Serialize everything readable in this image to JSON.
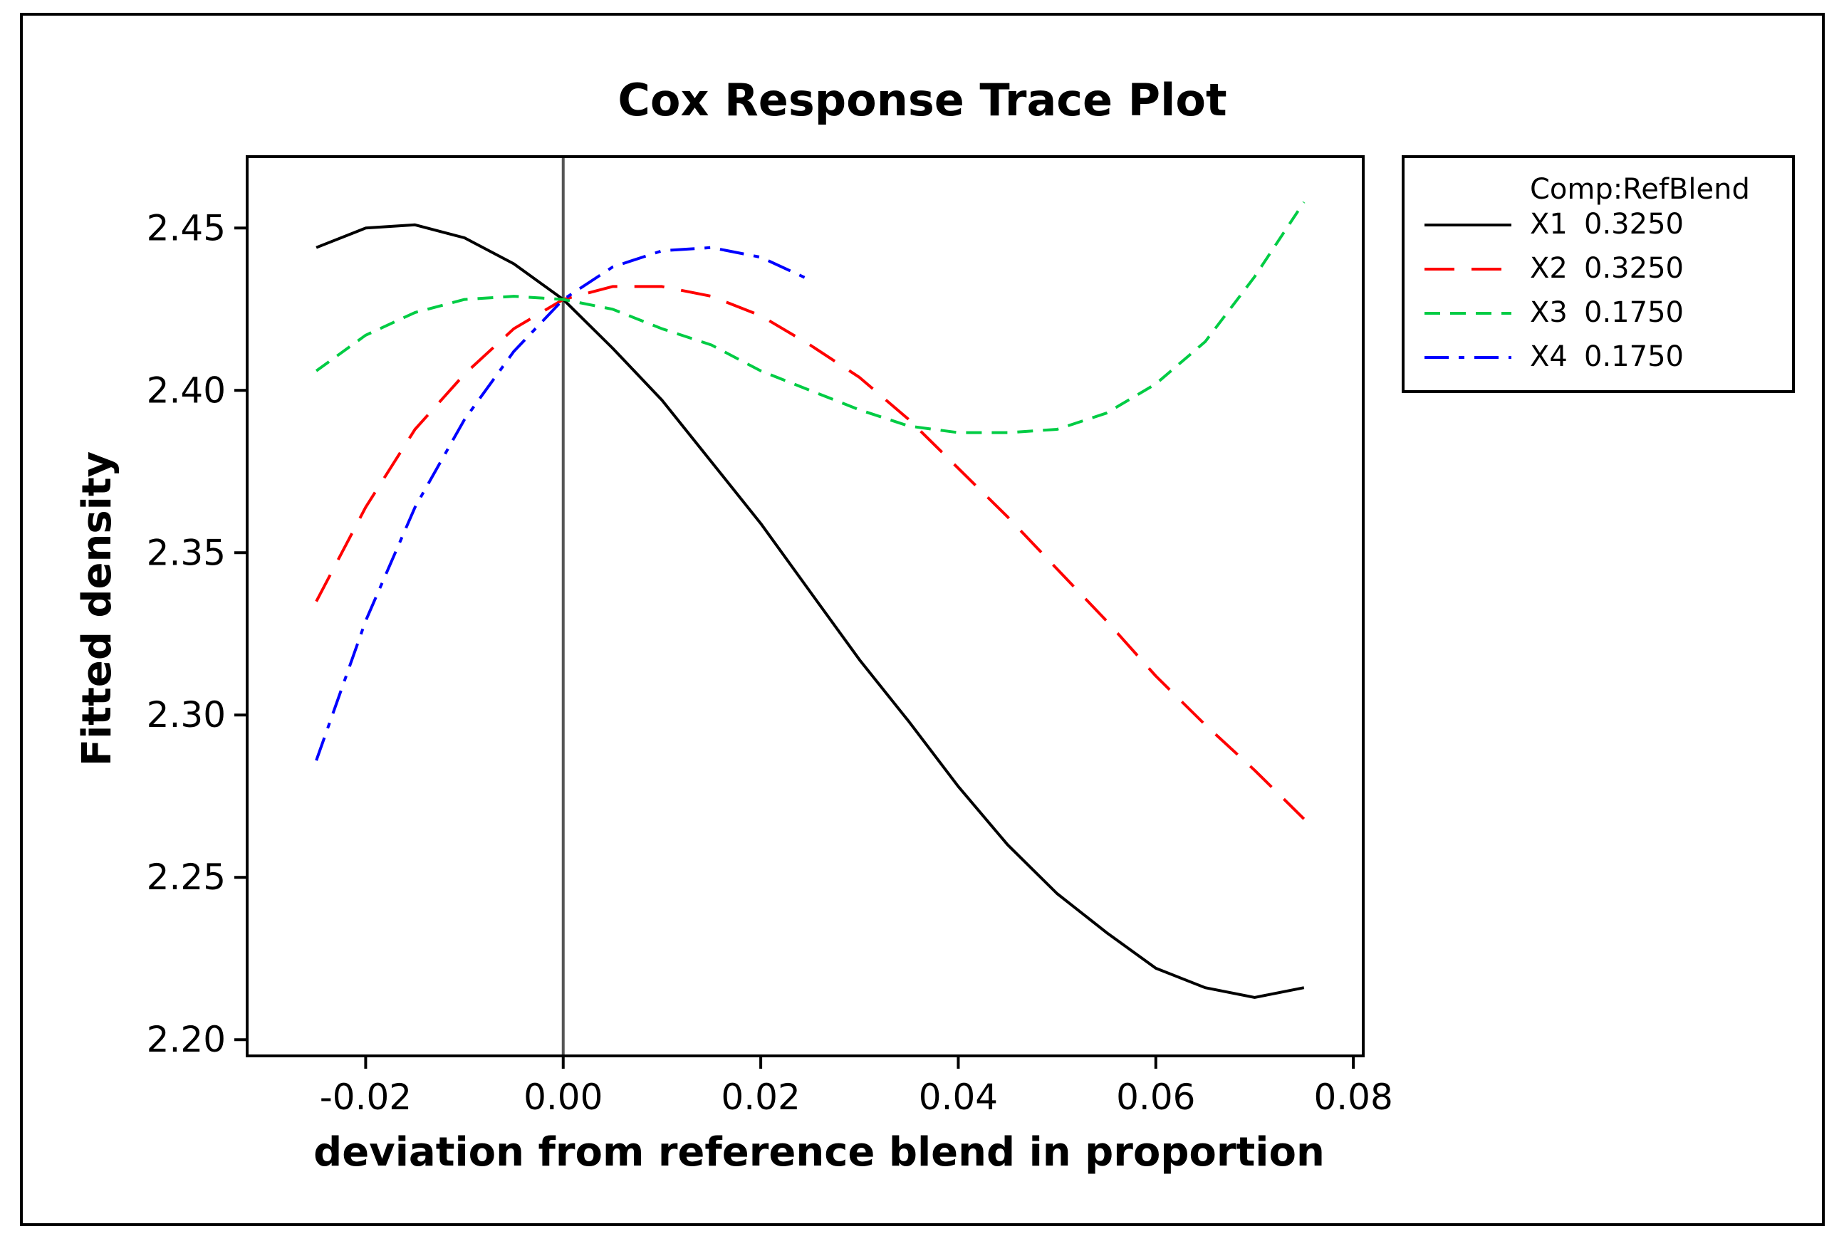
{
  "chart_data": {
    "type": "line",
    "title": "Cox Response Trace Plot",
    "xlabel": "deviation from reference blend in proportion",
    "ylabel": "Fitted density",
    "xlim": [
      -0.032,
      0.081
    ],
    "ylim": [
      2.195,
      2.472
    ],
    "xticks": [
      -0.02,
      0.0,
      0.02,
      0.04,
      0.06,
      0.08
    ],
    "xtick_labels": [
      "-0.02",
      "0.00",
      "0.02",
      "0.04",
      "0.06",
      "0.08"
    ],
    "yticks": [
      2.2,
      2.25,
      2.3,
      2.35,
      2.4,
      2.45
    ],
    "ytick_labels": [
      "2.20",
      "2.25",
      "2.30",
      "2.35",
      "2.40",
      "2.45"
    ],
    "reference_line_x": 0.0,
    "grid": false,
    "legend": {
      "placement": "right",
      "header": "Comp:RefBlend",
      "entries": [
        {
          "component": "X1",
          "value": "0.3250"
        },
        {
          "component": "X2",
          "value": "0.3250"
        },
        {
          "component": "X3",
          "value": "0.1750"
        },
        {
          "component": "X4",
          "value": "0.1750"
        }
      ]
    },
    "series": [
      {
        "name": "X1 0.3250",
        "color": "#000000",
        "dash": "solid",
        "points": [
          [
            -0.025,
            2.444
          ],
          [
            -0.02,
            2.45
          ],
          [
            -0.015,
            2.451
          ],
          [
            -0.01,
            2.447
          ],
          [
            -0.005,
            2.439
          ],
          [
            0.0,
            2.428
          ],
          [
            0.005,
            2.413
          ],
          [
            0.01,
            2.397
          ],
          [
            0.015,
            2.378
          ],
          [
            0.02,
            2.359
          ],
          [
            0.025,
            2.338
          ],
          [
            0.03,
            2.317
          ],
          [
            0.035,
            2.298
          ],
          [
            0.04,
            2.278
          ],
          [
            0.045,
            2.26
          ],
          [
            0.05,
            2.245
          ],
          [
            0.055,
            2.233
          ],
          [
            0.06,
            2.222
          ],
          [
            0.065,
            2.216
          ],
          [
            0.07,
            2.213
          ],
          [
            0.075,
            2.216
          ]
        ]
      },
      {
        "name": "X2 0.3250",
        "color": "#ff0000",
        "dash": "long-dash",
        "points": [
          [
            -0.025,
            2.335
          ],
          [
            -0.02,
            2.364
          ],
          [
            -0.015,
            2.388
          ],
          [
            -0.01,
            2.405
          ],
          [
            -0.005,
            2.419
          ],
          [
            0.0,
            2.428
          ],
          [
            0.005,
            2.432
          ],
          [
            0.01,
            2.432
          ],
          [
            0.015,
            2.429
          ],
          [
            0.02,
            2.423
          ],
          [
            0.025,
            2.414
          ],
          [
            0.03,
            2.404
          ],
          [
            0.035,
            2.391
          ],
          [
            0.04,
            2.376
          ],
          [
            0.045,
            2.361
          ],
          [
            0.05,
            2.345
          ],
          [
            0.055,
            2.329
          ],
          [
            0.06,
            2.312
          ],
          [
            0.065,
            2.297
          ],
          [
            0.07,
            2.283
          ],
          [
            0.075,
            2.268
          ]
        ]
      },
      {
        "name": "X3 0.1750",
        "color": "#00cc44",
        "dash": "short-dash",
        "points": [
          [
            -0.025,
            2.406
          ],
          [
            -0.02,
            2.417
          ],
          [
            -0.015,
            2.424
          ],
          [
            -0.01,
            2.428
          ],
          [
            -0.005,
            2.429
          ],
          [
            0.0,
            2.428
          ],
          [
            0.005,
            2.425
          ],
          [
            0.01,
            2.419
          ],
          [
            0.015,
            2.414
          ],
          [
            0.02,
            2.406
          ],
          [
            0.025,
            2.4
          ],
          [
            0.03,
            2.394
          ],
          [
            0.035,
            2.389
          ],
          [
            0.04,
            2.387
          ],
          [
            0.045,
            2.387
          ],
          [
            0.05,
            2.388
          ],
          [
            0.055,
            2.393
          ],
          [
            0.06,
            2.402
          ],
          [
            0.065,
            2.415
          ],
          [
            0.07,
            2.435
          ],
          [
            0.075,
            2.458
          ]
        ]
      },
      {
        "name": "X4 0.1750",
        "color": "#0000ff",
        "dash": "dash-dot",
        "points": [
          [
            -0.025,
            2.286
          ],
          [
            -0.02,
            2.329
          ],
          [
            -0.015,
            2.364
          ],
          [
            -0.01,
            2.391
          ],
          [
            -0.005,
            2.412
          ],
          [
            0.0,
            2.428
          ],
          [
            0.005,
            2.438
          ],
          [
            0.01,
            2.443
          ],
          [
            0.015,
            2.444
          ],
          [
            0.02,
            2.441
          ],
          [
            0.025,
            2.434
          ]
        ]
      }
    ]
  }
}
